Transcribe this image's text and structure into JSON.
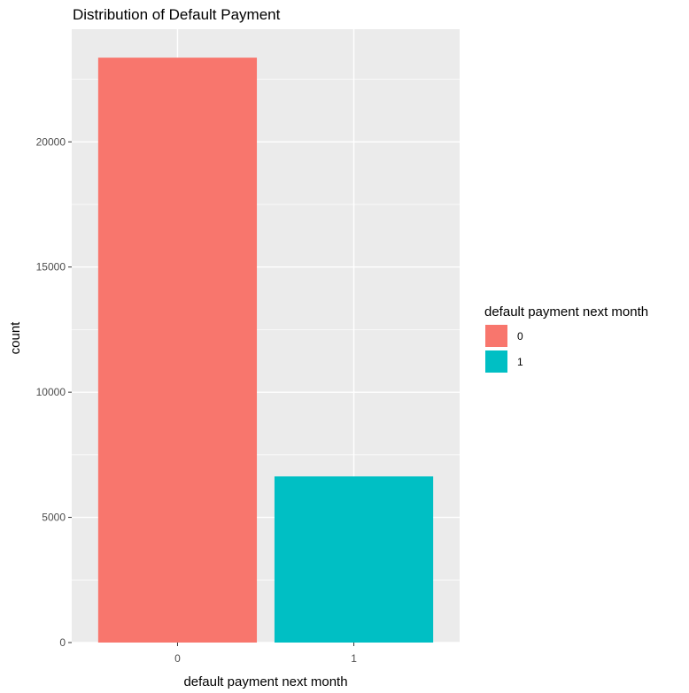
{
  "chart_data": {
    "type": "bar",
    "title": "Distribution of Default Payment",
    "xlabel": "default payment next month",
    "ylabel": "count",
    "categories": [
      "0",
      "1"
    ],
    "values": [
      23364,
      6636
    ],
    "ylim": [
      0,
      24500
    ],
    "yticks": [
      0,
      5000,
      10000,
      15000,
      20000
    ],
    "ytick_labels": [
      "0",
      "5000",
      "10000",
      "15000",
      "20000"
    ],
    "grid": true,
    "panel_background": "#ebebeb",
    "grid_color": "#ffffff",
    "colors": [
      "#f8766d",
      "#00bfc4"
    ],
    "legend": {
      "title": "default payment next month",
      "placement": "right",
      "entries": [
        "0",
        "1"
      ]
    }
  }
}
